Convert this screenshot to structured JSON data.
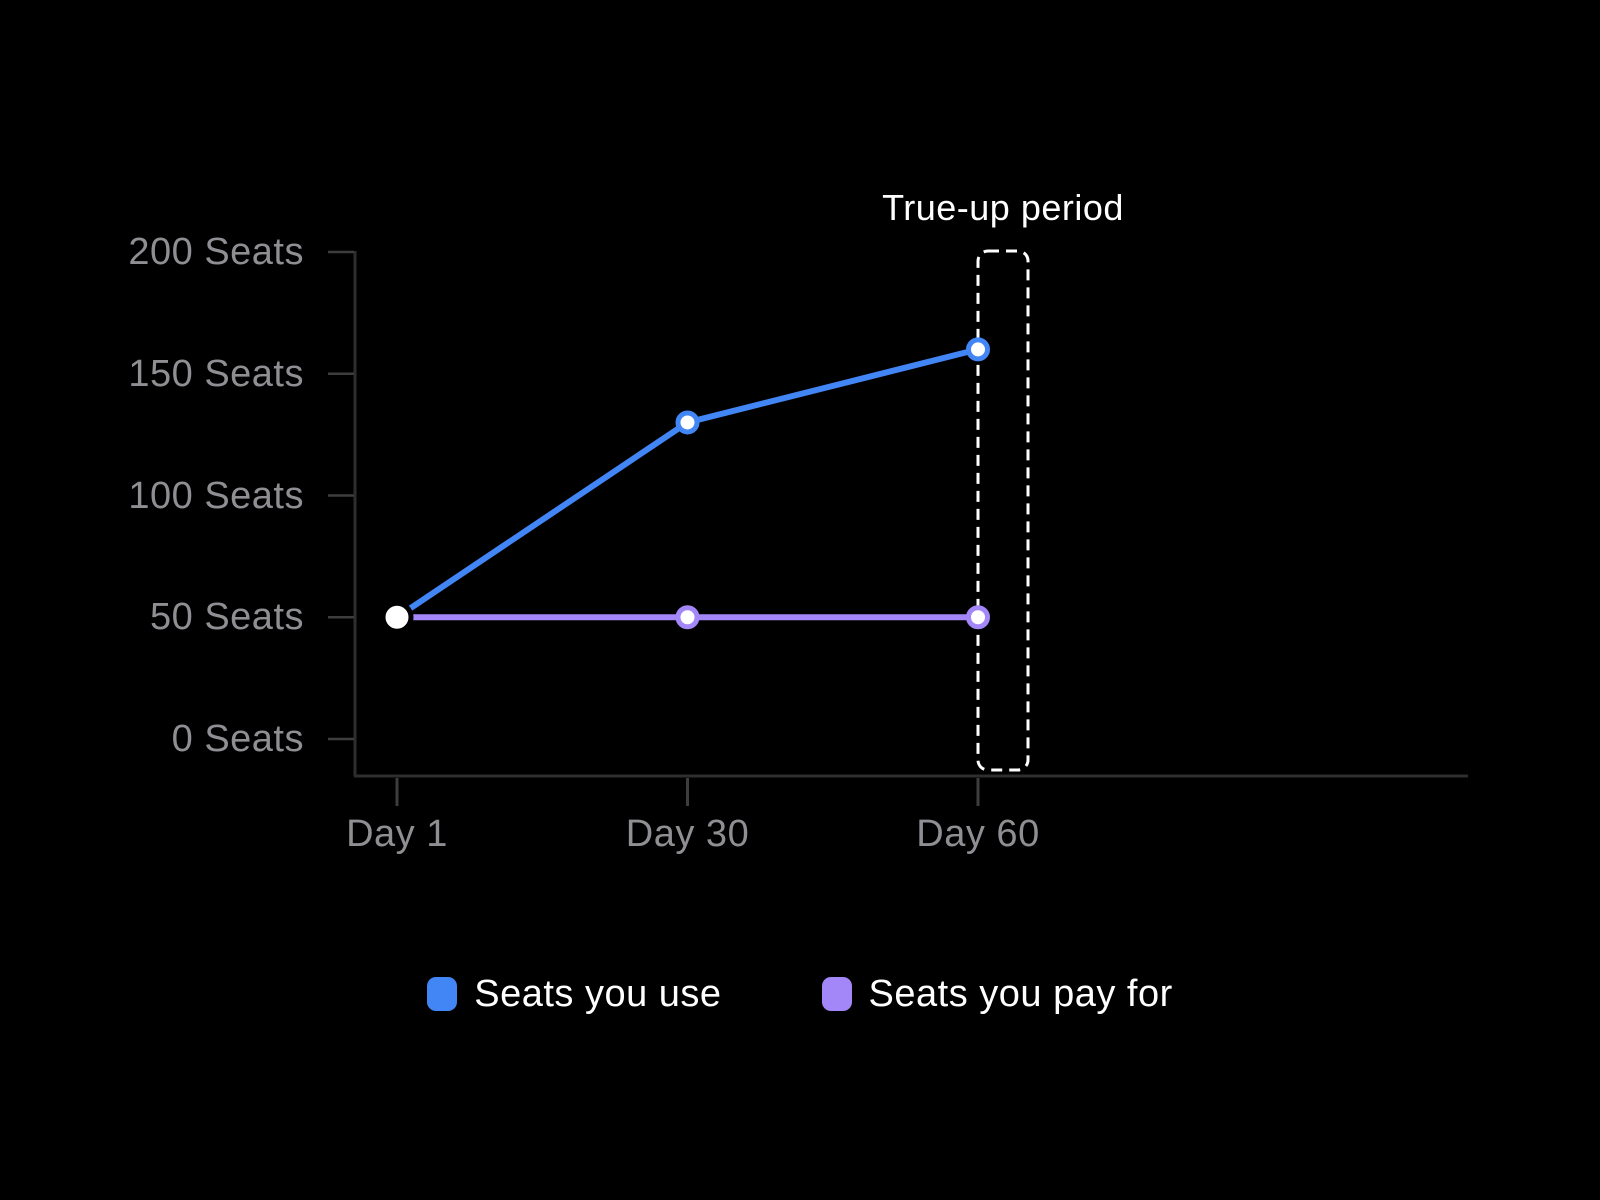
{
  "chart_data": {
    "type": "line",
    "title": "",
    "xlabel": "",
    "ylabel": "",
    "categories": [
      "Day 1",
      "Day 30",
      "Day 60"
    ],
    "series": [
      {
        "name": "Seats you use",
        "values": [
          50,
          130,
          160
        ],
        "color": "#4285F5"
      },
      {
        "name": "Seats you pay for",
        "values": [
          50,
          50,
          50
        ],
        "color": "#A387F8"
      }
    ],
    "yticks": [
      {
        "value": 200,
        "label": "200 Seats"
      },
      {
        "value": 150,
        "label": "150 Seats"
      },
      {
        "value": 100,
        "label": "100 Seats"
      },
      {
        "value": 50,
        "label": "50 Seats"
      },
      {
        "value": 0,
        "label": "0 Seats"
      }
    ],
    "ylim": [
      0,
      200
    ],
    "grid": false,
    "legend_position": "bottom",
    "annotation": {
      "label": "True-up period",
      "target_category": "Day 60"
    },
    "start_marker": {
      "category": "Day 1",
      "value": 50,
      "fill": "#FFFFFF",
      "ring_color": "#000000"
    }
  },
  "colors": {
    "background": "#000000",
    "axis_line": "#2E2E2E",
    "tick_mark": "#3D3D3D",
    "axis_label_text": "#8E8E93",
    "annotation_text": "#FFFFFF",
    "annotation_box_border": "#FFFFFF",
    "legend_text": "#FFFFFF",
    "point_fill": "#FFFFFF"
  }
}
